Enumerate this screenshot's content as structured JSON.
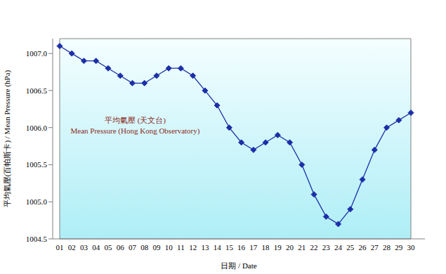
{
  "chart_data": {
    "type": "line",
    "x_label": "日期 / Date",
    "y_label": "平均氣壓(百帕斯卡) / Mean Pressure (hPa)",
    "annotations": [
      "平均氣壓 (天文台)",
      "Mean Pressure (Hong Kong Observatory)"
    ],
    "categories": [
      "01",
      "02",
      "03",
      "04",
      "05",
      "06",
      "07",
      "08",
      "09",
      "10",
      "11",
      "12",
      "13",
      "14",
      "15",
      "16",
      "17",
      "18",
      "19",
      "20",
      "21",
      "22",
      "23",
      "24",
      "25",
      "26",
      "27",
      "28",
      "29",
      "30"
    ],
    "values": [
      1007.1,
      1007.0,
      1006.9,
      1006.9,
      1006.8,
      1006.7,
      1006.6,
      1006.6,
      1006.7,
      1006.8,
      1006.8,
      1006.7,
      1006.5,
      1006.3,
      1006.0,
      1005.8,
      1005.7,
      1005.8,
      1005.9,
      1005.8,
      1005.5,
      1005.1,
      1004.8,
      1004.7,
      1004.9,
      1005.3,
      1005.7,
      1006.0,
      1006.1,
      1006.2
    ],
    "color": "#1c2fa8",
    "marker": "diamond",
    "ylim": [
      1004.5,
      1007.2
    ],
    "yticks": [
      1004.5,
      {
        "value": 1005,
        "label": "1005.0"
      },
      1005.5,
      {
        "value": 1006,
        "label": "1006.0"
      },
      1006.5,
      {
        "value": 1007,
        "label": "1007.0"
      }
    ],
    "grid": false
  }
}
